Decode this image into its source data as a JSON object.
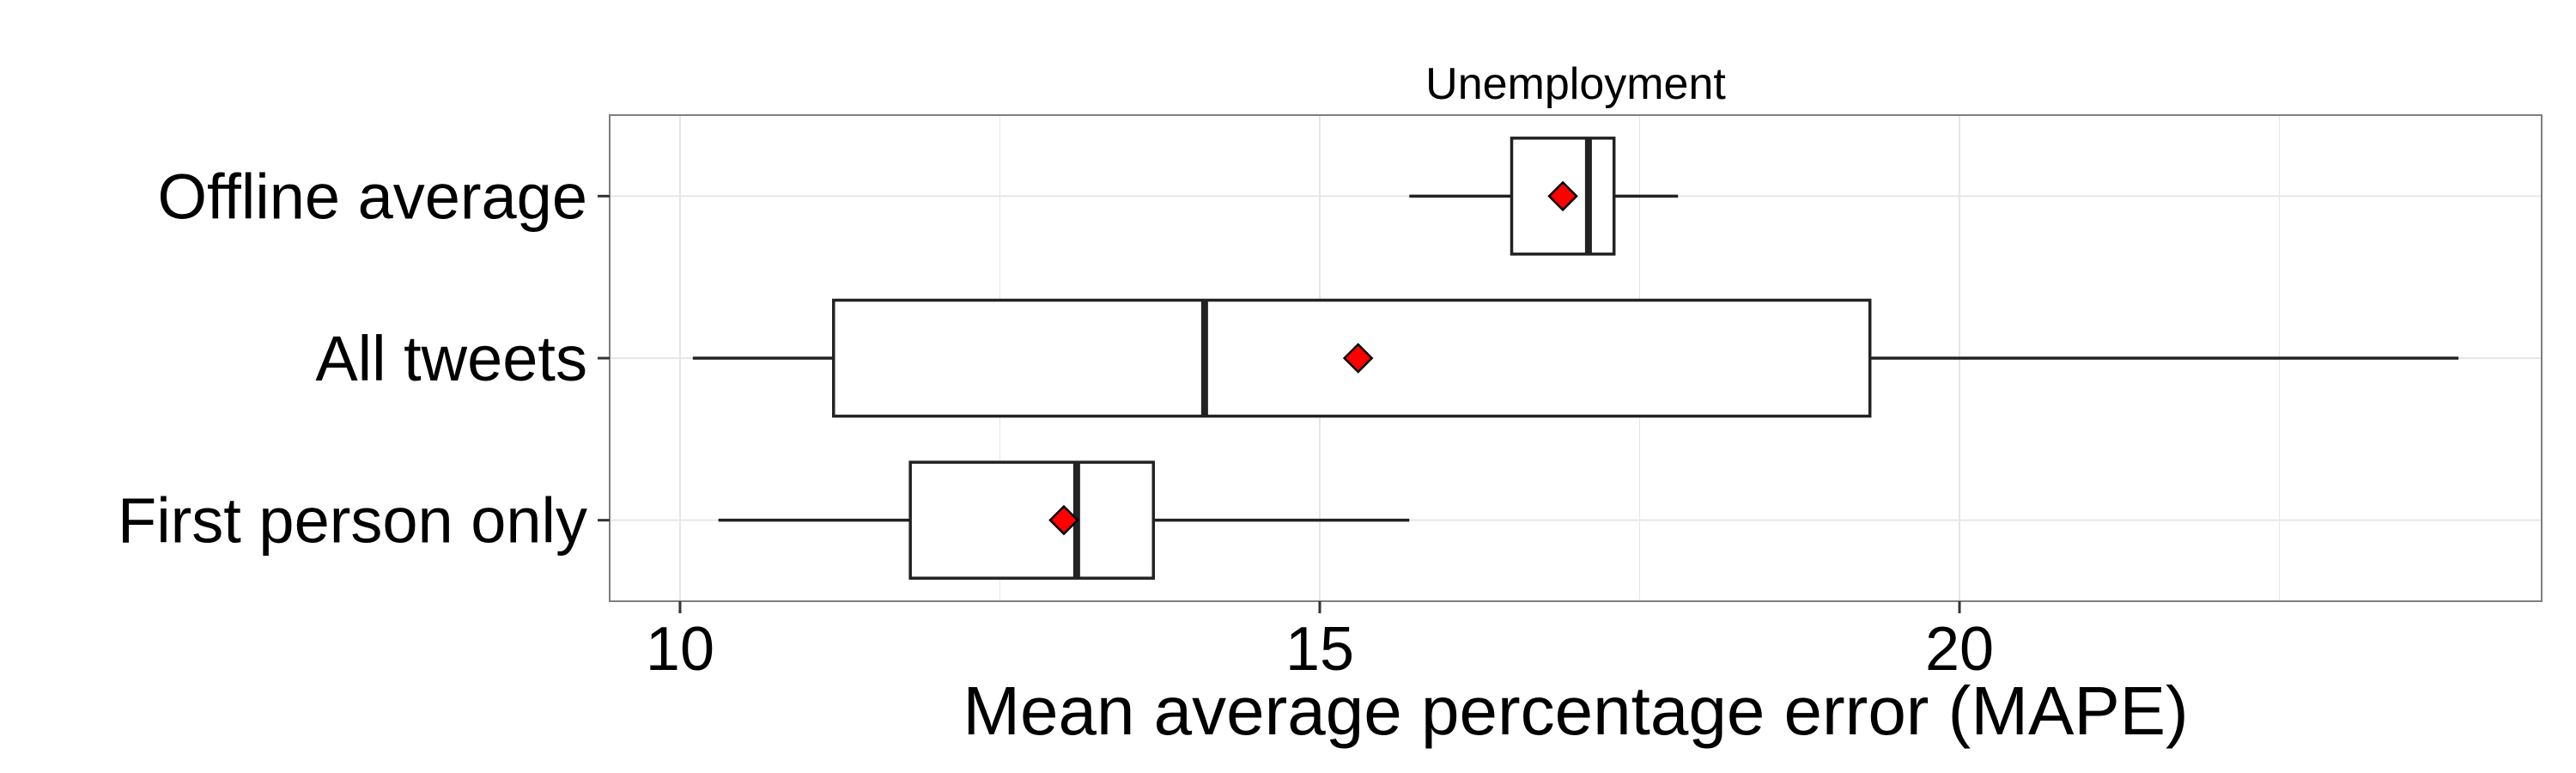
{
  "chart_data": {
    "type": "boxplot",
    "orientation": "horizontal",
    "title": "Unemployment",
    "xlabel": "Mean average percentage error (MAPE)",
    "ylabel": "",
    "xlim": [
      9.45,
      24.55
    ],
    "x_ticks": [
      10,
      15,
      20
    ],
    "grid": true,
    "legend": "none",
    "categories": [
      "Offline average",
      "All tweets",
      "First person only"
    ],
    "boxes": [
      {
        "category": "Offline average",
        "whisker_low": 15.7,
        "q1": 16.5,
        "median": 17.1,
        "q3": 17.3,
        "whisker_high": 17.8,
        "mean": 16.9
      },
      {
        "category": "All tweets",
        "whisker_low": 10.1,
        "q1": 11.2,
        "median": 14.1,
        "q3": 19.3,
        "whisker_high": 23.9,
        "mean": 15.3
      },
      {
        "category": "First person only",
        "whisker_low": 10.3,
        "q1": 11.8,
        "median": 13.1,
        "q3": 13.7,
        "whisker_high": 15.7,
        "mean": 13.0
      }
    ],
    "colors": {
      "mean_marker": "#ff0000",
      "box_stroke": "#222222",
      "grid": "#e6e6e6",
      "panel_border": "#7f7f7f"
    }
  }
}
